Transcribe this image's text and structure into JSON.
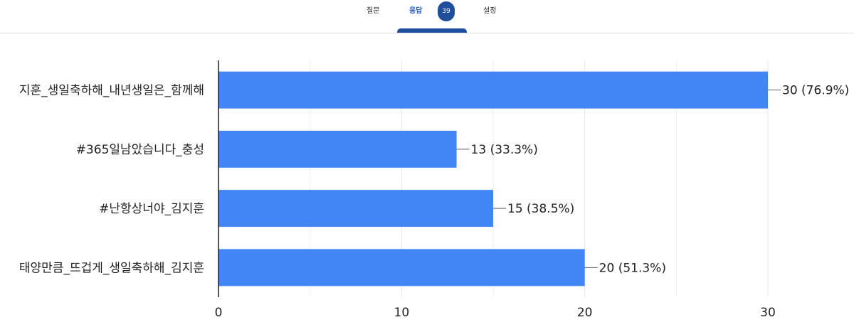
{
  "tabs": [
    {
      "label": "질문",
      "active": false
    },
    {
      "label": "응답",
      "active": true
    },
    {
      "label": "설정",
      "active": false
    }
  ],
  "response_count": "39",
  "colors": {
    "bar": "#4285f4",
    "accent": "#1f4e9c",
    "grid": "#e8eaed",
    "axis": "#202124"
  },
  "chart_data": {
    "type": "bar",
    "orientation": "horizontal",
    "categories": [
      "지훈_생일축하해_내년생일은_함께해",
      "#365일남았습니다_충성",
      "#난항상너야_김지훈",
      "태양만큼_뜨겁게_생일축하해_김지훈"
    ],
    "values": [
      30,
      13,
      15,
      20
    ],
    "value_labels": [
      "30 (76.9%)",
      "13 (33.3%)",
      "15 (38.5%)",
      "20 (51.3%)"
    ],
    "xlim": [
      0,
      30
    ],
    "xticks": [
      "0",
      "10",
      "20",
      "30"
    ],
    "grid": true
  }
}
